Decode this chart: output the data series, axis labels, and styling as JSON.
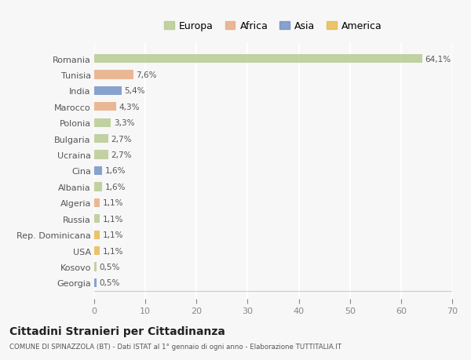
{
  "countries": [
    "Romania",
    "Tunisia",
    "India",
    "Marocco",
    "Polonia",
    "Bulgaria",
    "Ucraina",
    "Cina",
    "Albania",
    "Algeria",
    "Russia",
    "Rep. Dominicana",
    "USA",
    "Kosovo",
    "Georgia"
  ],
  "values": [
    64.1,
    7.6,
    5.4,
    4.3,
    3.3,
    2.7,
    2.7,
    1.6,
    1.6,
    1.1,
    1.1,
    1.1,
    1.1,
    0.5,
    0.5
  ],
  "labels": [
    "64,1%",
    "7,6%",
    "5,4%",
    "4,3%",
    "3,3%",
    "2,7%",
    "2,7%",
    "1,6%",
    "1,6%",
    "1,1%",
    "1,1%",
    "1,1%",
    "1,1%",
    "0,5%",
    "0,5%"
  ],
  "colors": [
    "#b5c98e",
    "#e8a97e",
    "#6e8fc4",
    "#e8a97e",
    "#b5c98e",
    "#b5c98e",
    "#b5c98e",
    "#6e8fc4",
    "#b5c98e",
    "#e8a97e",
    "#b5c98e",
    "#e8b84b",
    "#e8b84b",
    "#b5c98e",
    "#6e8fc4"
  ],
  "legend_labels": [
    "Europa",
    "Africa",
    "Asia",
    "America"
  ],
  "legend_colors": [
    "#b5c98e",
    "#e8a97e",
    "#6e8fc4",
    "#e8b84b"
  ],
  "title": "Cittadini Stranieri per Cittadinanza",
  "subtitle": "COMUNE DI SPINAZZOLA (BT) - Dati ISTAT al 1° gennaio di ogni anno - Elaborazione TUTTITALIA.IT",
  "xlim": [
    0,
    70
  ],
  "xticks": [
    0,
    10,
    20,
    30,
    40,
    50,
    60,
    70
  ],
  "background_color": "#f7f7f7",
  "grid_color": "#ffffff",
  "bar_height": 0.55
}
